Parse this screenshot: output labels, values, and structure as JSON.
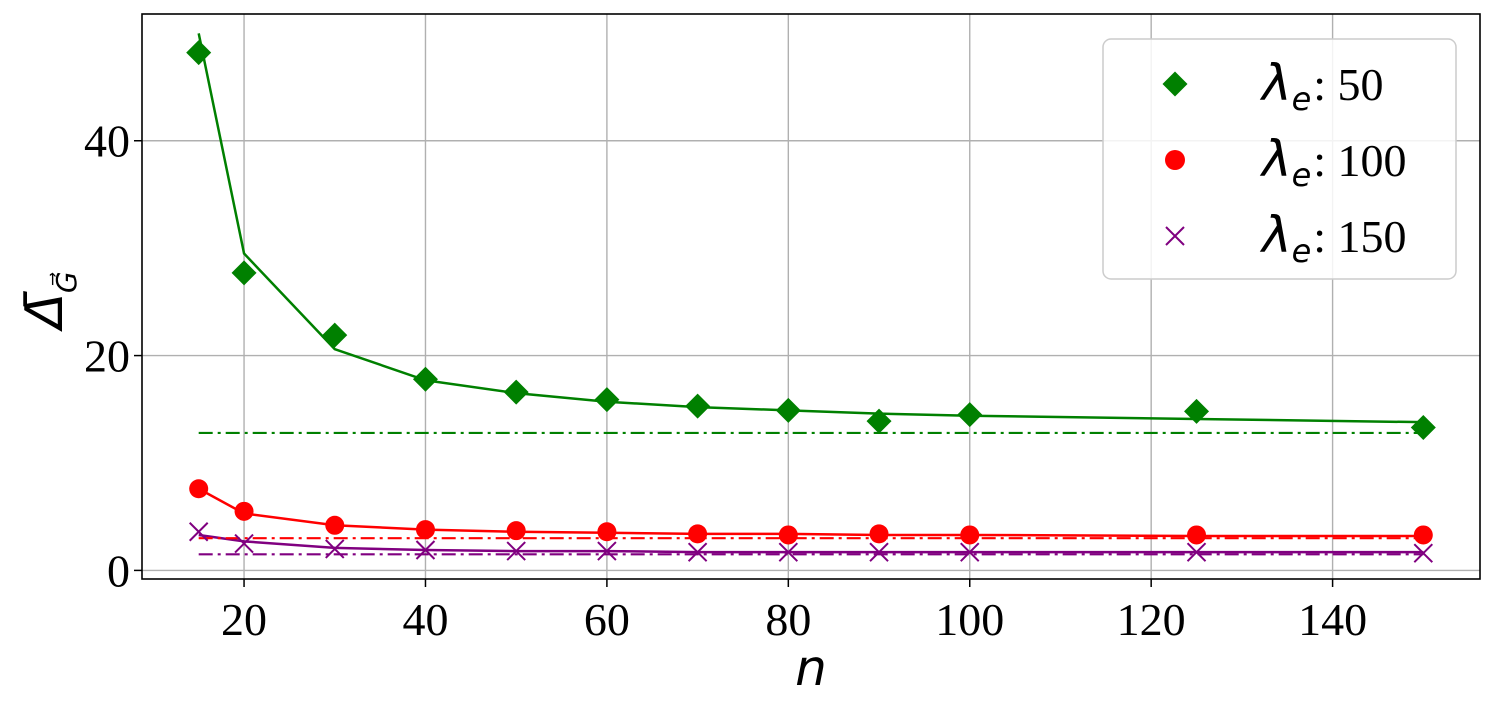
{
  "chart_data": {
    "type": "scatter",
    "xlabel": "n",
    "ylabel": "Δ̄",
    "ylabel_sub": "G⃗",
    "xlim": [
      8.75,
      156.25
    ],
    "ylim": [
      -0.8,
      51.8
    ],
    "xticks": [
      20,
      40,
      60,
      80,
      100,
      120,
      140
    ],
    "yticks": [
      0,
      20,
      40
    ],
    "grid": true,
    "legend_position": "top-right",
    "series": [
      {
        "name_symbol": "λ",
        "name_sub": "e",
        "name_value": ": 50",
        "color": "#008000",
        "marker": "diamond",
        "x": [
          15,
          20,
          30,
          40,
          50,
          60,
          70,
          80,
          90,
          100,
          125,
          150
        ],
        "values": [
          48.2,
          27.7,
          21.9,
          17.8,
          16.6,
          15.9,
          15.3,
          14.9,
          13.9,
          14.5,
          14.8,
          13.3
        ],
        "fit": [
          50.0,
          29.5,
          20.6,
          17.7,
          16.5,
          15.7,
          15.2,
          14.9,
          14.6,
          14.4,
          14.1,
          13.8
        ],
        "asymptote": 12.8
      },
      {
        "name_symbol": "λ",
        "name_sub": "e",
        "name_value": ": 100",
        "color": "#ff0000",
        "marker": "circle",
        "x": [
          15,
          20,
          30,
          40,
          50,
          60,
          70,
          80,
          90,
          100,
          125,
          150
        ],
        "values": [
          7.6,
          5.5,
          4.2,
          3.8,
          3.7,
          3.6,
          3.4,
          3.3,
          3.4,
          3.3,
          3.3,
          3.3
        ],
        "fit": [
          7.6,
          5.3,
          4.2,
          3.8,
          3.6,
          3.5,
          3.4,
          3.4,
          3.3,
          3.3,
          3.2,
          3.2
        ],
        "asymptote": 3.0
      },
      {
        "name_symbol": "λ",
        "name_sub": "e",
        "name_value": ": 150",
        "color": "#800080",
        "marker": "x",
        "x": [
          15,
          20,
          30,
          40,
          50,
          60,
          70,
          80,
          90,
          100,
          125,
          150
        ],
        "values": [
          3.6,
          2.5,
          2.0,
          1.9,
          1.8,
          1.8,
          1.7,
          1.7,
          1.7,
          1.7,
          1.7,
          1.6
        ],
        "fit": [
          3.3,
          2.7,
          2.1,
          1.9,
          1.8,
          1.8,
          1.7,
          1.7,
          1.7,
          1.7,
          1.7,
          1.7
        ],
        "asymptote": 1.5
      }
    ]
  }
}
